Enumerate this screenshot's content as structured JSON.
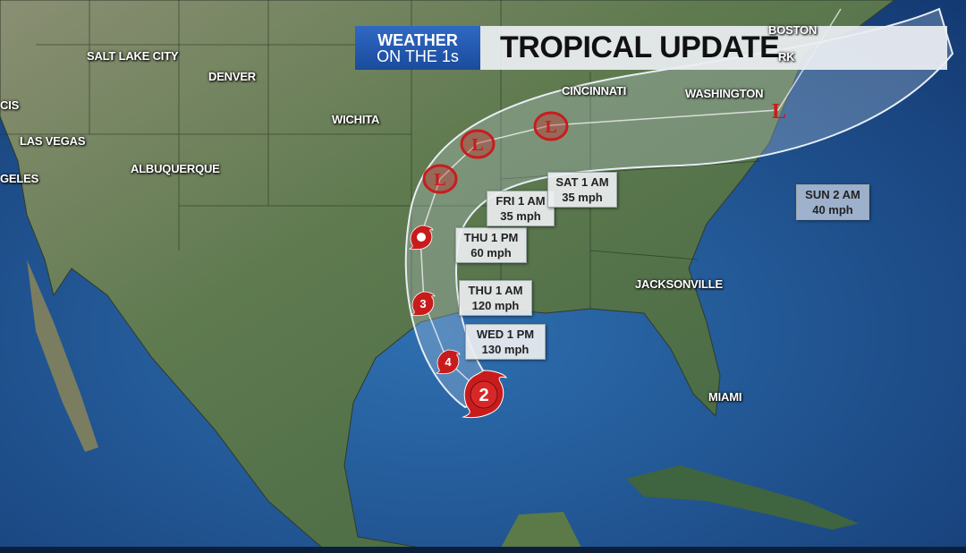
{
  "header": {
    "brand_line1": "WEATHER",
    "brand_line2": "ON THE 1s",
    "title": "TROPICAL UPDATE"
  },
  "cities": [
    {
      "id": "salt-lake-city",
      "label": "SALT LAKE CITY"
    },
    {
      "id": "denver",
      "label": "DENVER"
    },
    {
      "id": "san-francisco",
      "label": "CIS"
    },
    {
      "id": "las-vegas",
      "label": "LAS VEGAS"
    },
    {
      "id": "los-angeles",
      "label": "GELES"
    },
    {
      "id": "albuquerque",
      "label": "ALBUQUERQUE"
    },
    {
      "id": "wichita",
      "label": "WICHITA"
    },
    {
      "id": "cincinnati",
      "label": "CINCINNATI"
    },
    {
      "id": "washington",
      "label": "WASHINGTON"
    },
    {
      "id": "boston",
      "label": "BOSTON"
    },
    {
      "id": "new-york",
      "label": "RK"
    },
    {
      "id": "jacksonville",
      "label": "JACKSONVILLE"
    },
    {
      "id": "miami",
      "label": "MIAMI"
    }
  ],
  "forecast_points": [
    {
      "time": "WED 1 PM",
      "wind": "130 mph"
    },
    {
      "time": "THU 1 AM",
      "wind": "120 mph"
    },
    {
      "time": "THU 1 PM",
      "wind": "60 mph"
    },
    {
      "time": "FRI 1 AM",
      "wind": "35 mph"
    },
    {
      "time": "SAT 1 AM",
      "wind": "35 mph"
    },
    {
      "time": "SUN 2 AM",
      "wind": "40 mph"
    }
  ],
  "storm_markers": [
    {
      "type": "hurricane",
      "label": "2",
      "icon": "hurricane-icon"
    },
    {
      "type": "hurricane",
      "label": "4",
      "icon": "hurricane-icon"
    },
    {
      "type": "hurricane",
      "label": "3",
      "icon": "hurricane-icon"
    },
    {
      "type": "tropical-storm",
      "label": "",
      "icon": "tropical-storm-icon"
    },
    {
      "type": "low",
      "label": "L",
      "icon": "low-pressure-icon"
    },
    {
      "type": "low",
      "label": "L",
      "icon": "low-pressure-icon"
    },
    {
      "type": "low",
      "label": "L",
      "icon": "low-pressure-icon"
    },
    {
      "type": "low",
      "label": "L",
      "icon": "low-pressure-icon"
    }
  ],
  "colors": {
    "ocean": "#1f4f8e",
    "land": "#56704a",
    "storm_red": "#c81c1c",
    "brand_blue": "#2f69c4"
  }
}
